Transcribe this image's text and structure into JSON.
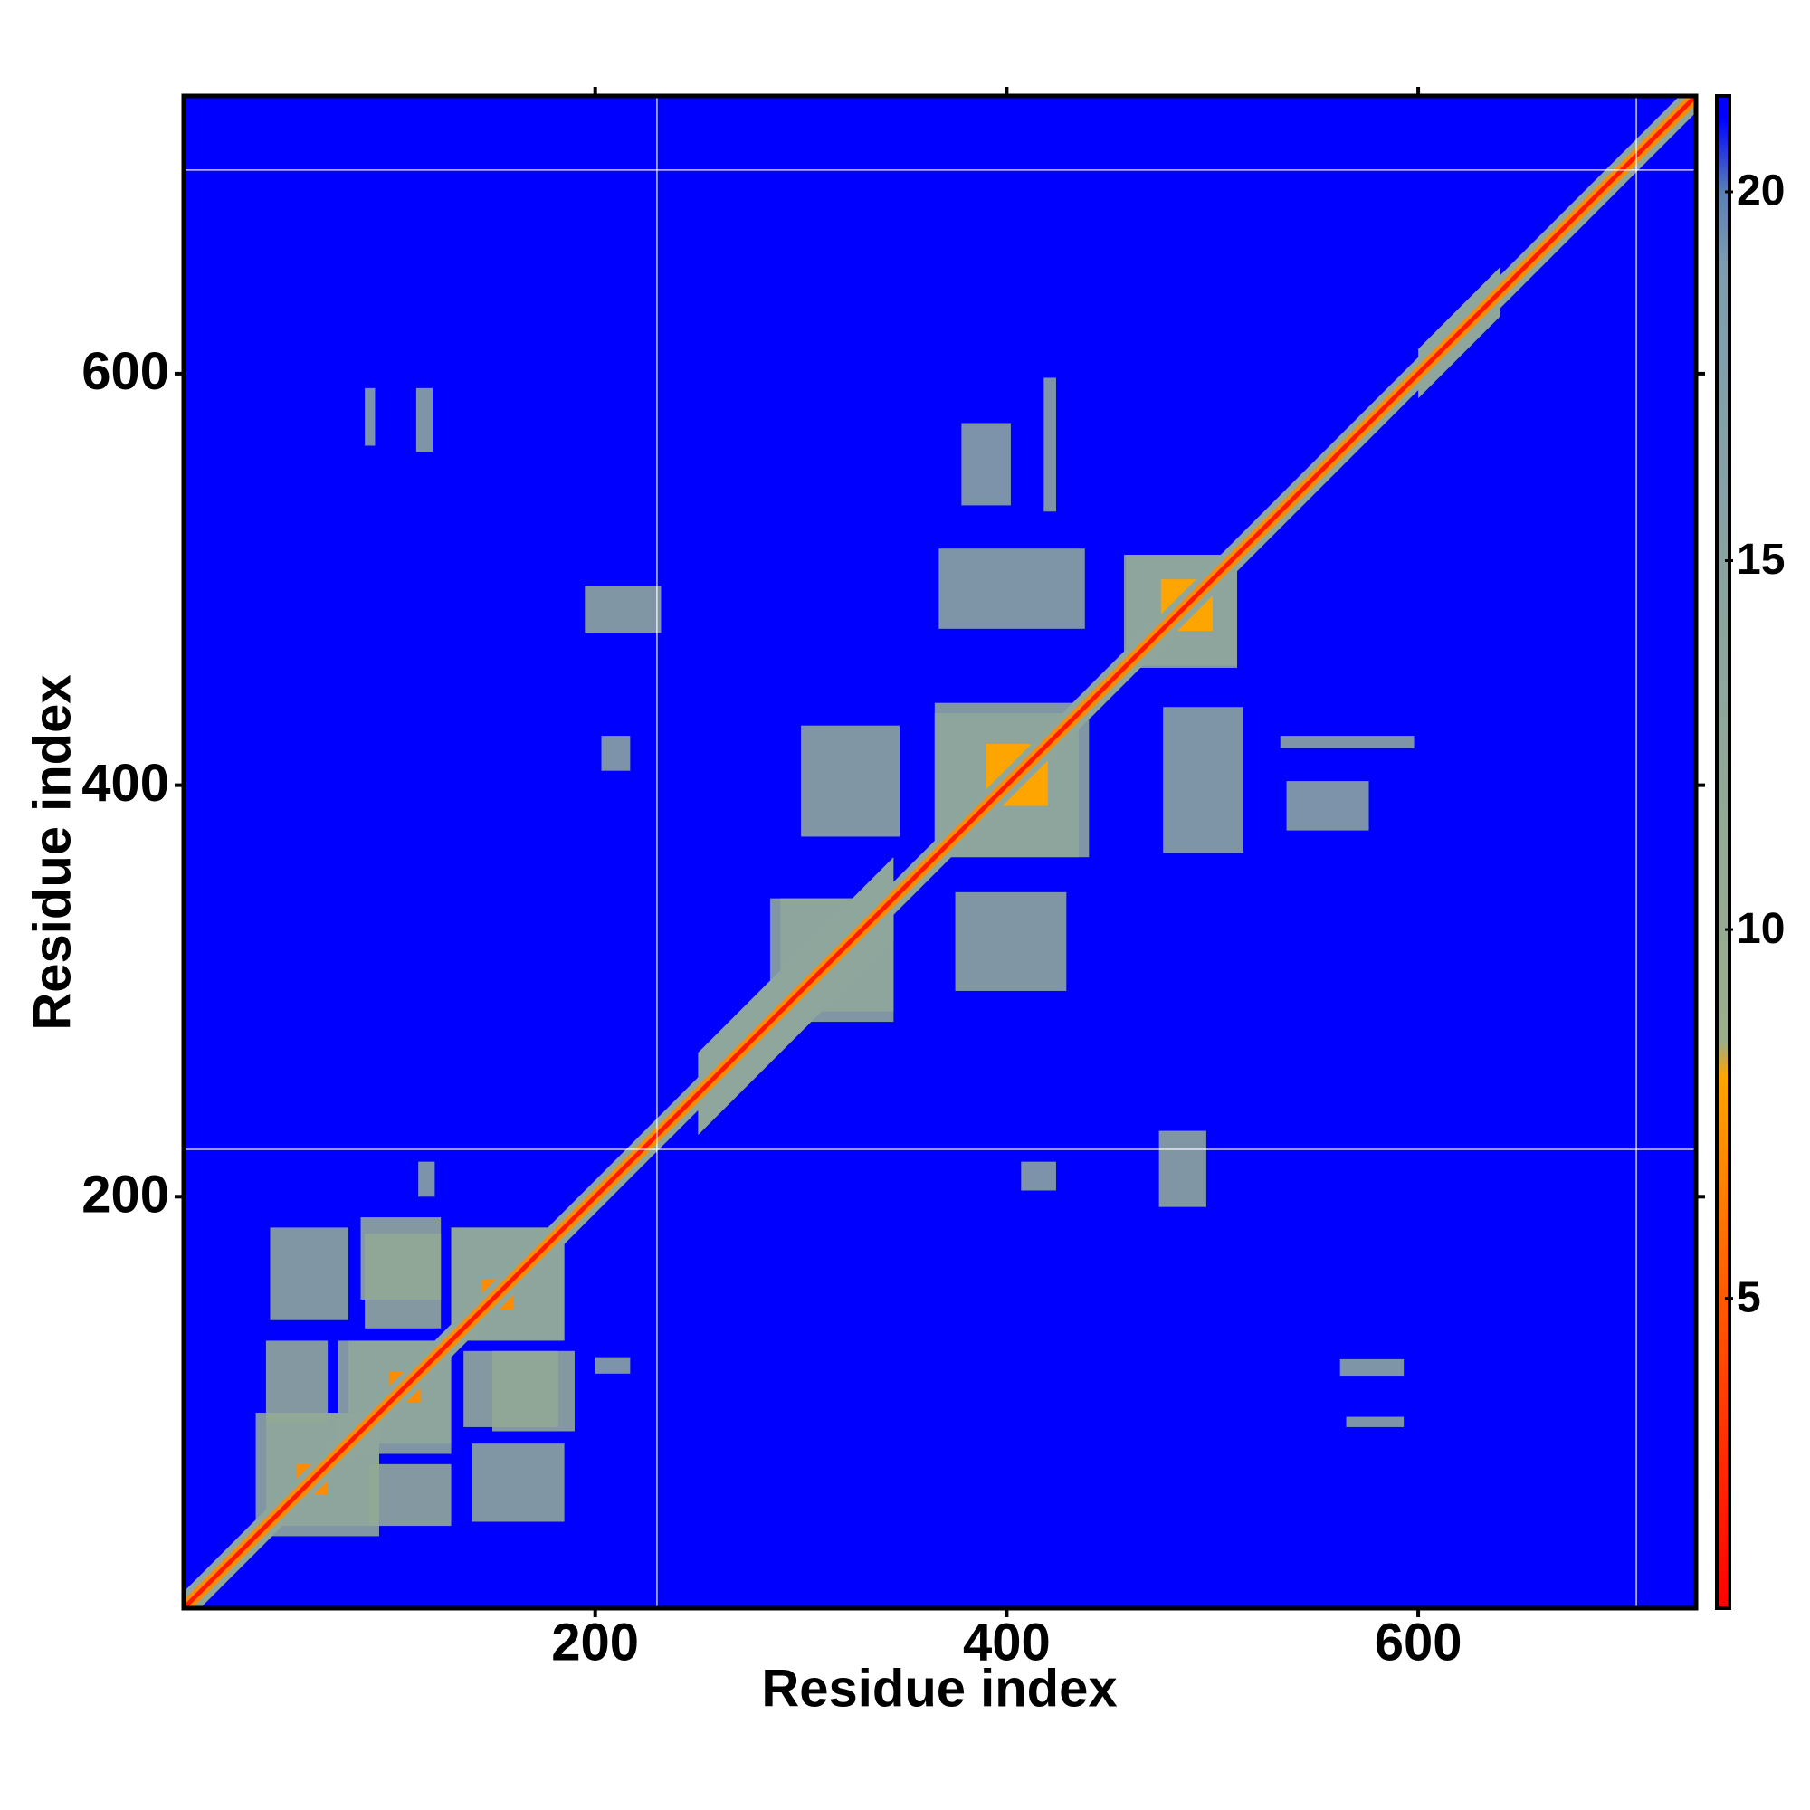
{
  "chart_data": {
    "type": "contact_map",
    "x_label": "Residue index",
    "y_label": "Residue index",
    "xlim": [
      0,
      735
    ],
    "ylim": [
      0,
      735
    ],
    "xticks": [
      200,
      400,
      600
    ],
    "yticks": [
      200,
      400,
      600
    ],
    "symmetric": true,
    "background_value": 21,
    "clim": [
      0.8,
      21.3
    ],
    "cticks": [
      5,
      10,
      15,
      20
    ],
    "colorscale": [
      {
        "value": 0.8,
        "color": "#ff0000"
      },
      {
        "value": 5,
        "color": "#ff5a00"
      },
      {
        "value": 8,
        "color": "#ffa500"
      },
      {
        "value": 8.5,
        "color": "#9aae8c"
      },
      {
        "value": 19,
        "color": "#7f9cae"
      },
      {
        "value": 20,
        "color": "#5b7fb4"
      },
      {
        "value": 21,
        "color": "#0000ff"
      }
    ],
    "missing_x": [
      230,
      706
    ],
    "missing_y": [
      223,
      699
    ],
    "patches": [
      {
        "x": [
          40,
          95
        ],
        "y": [
          35,
          95
        ],
        "value": 13
      },
      {
        "x": [
          80,
          130
        ],
        "y": [
          75,
          130
        ],
        "value": 13
      },
      {
        "x": [
          130,
          185
        ],
        "y": [
          130,
          185
        ],
        "value": 13
      },
      {
        "x": [
          42,
          80
        ],
        "y": [
          140,
          185
        ],
        "value": 13
      },
      {
        "x": [
          86,
          125
        ],
        "y": [
          150,
          190
        ],
        "value": 12
      },
      {
        "x": [
          136,
          182
        ],
        "y": [
          88,
          125
        ],
        "value": 12
      },
      {
        "x": [
          90,
          130
        ],
        "y": [
          40,
          70
        ],
        "value": 12
      },
      {
        "x": [
          55,
          70
        ],
        "y": [
          55,
          70
        ],
        "value": 7
      },
      {
        "x": [
          100,
          115
        ],
        "y": [
          100,
          115
        ],
        "value": 7
      },
      {
        "x": [
          145,
          160
        ],
        "y": [
          145,
          160
        ],
        "value": 7
      },
      {
        "x": [
          290,
          345
        ],
        "y": [
          285,
          345
        ],
        "value": 13
      },
      {
        "x": [
          365,
          435
        ],
        "y": [
          365,
          440
        ],
        "value": 13
      },
      {
        "x": [
          390,
          420
        ],
        "y": [
          390,
          420
        ],
        "value": 8
      },
      {
        "x": [
          300,
          348
        ],
        "y": [
          375,
          429
        ],
        "value": 13
      },
      {
        "x": [
          457,
          512
        ],
        "y": [
          458,
          512
        ],
        "value": 13
      },
      {
        "x": [
          475,
          500
        ],
        "y": [
          475,
          500
        ],
        "value": 8
      },
      {
        "x": [
          367,
          438
        ],
        "y": [
          476,
          515
        ],
        "value": 14
      },
      {
        "x": [
          533,
          598
        ],
        "y": [
          418,
          424
        ],
        "value": 14
      },
      {
        "x": [
          536,
          576
        ],
        "y": [
          378,
          402
        ],
        "value": 15
      },
      {
        "x": [
          474,
          497
        ],
        "y": [
          195,
          232
        ],
        "value": 13
      },
      {
        "x": [
          562,
          593
        ],
        "y": [
          113,
          121
        ],
        "value": 14
      },
      {
        "x": [
          114,
          122
        ],
        "y": [
          200,
          217
        ],
        "value": 15
      },
      {
        "x": [
          407,
          424
        ],
        "y": [
          203,
          217
        ],
        "value": 15
      },
      {
        "x": [
          565,
          593
        ],
        "y": [
          88,
          93
        ],
        "value": 15
      }
    ],
    "diagonal_bands": [
      {
        "from": 0,
        "to": 735,
        "width": 16,
        "value": 13
      },
      {
        "from": 250,
        "to": 345,
        "width": 40,
        "value": 13
      },
      {
        "from": 600,
        "to": 640,
        "width": 24,
        "value": 13
      },
      {
        "from": 0,
        "to": 735,
        "width": 8,
        "value": 7
      },
      {
        "from": 0,
        "to": 735,
        "width": 3,
        "value": 2
      }
    ]
  }
}
